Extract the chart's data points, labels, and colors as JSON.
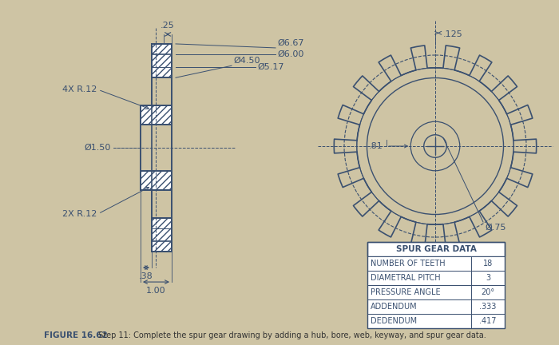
{
  "bg_color": "#cec4a4",
  "drawing_color": "#3a5070",
  "title": "FIGURE 16.62",
  "caption": " Step 11: Complete the spur gear drawing by adding a hub, bore, web, keyway, and spur gear data.",
  "table_title": "SPUR GEAR DATA",
  "table_rows": [
    [
      "NUMBER OF TEETH",
      "18"
    ],
    [
      "DIAMETRAL PITCH",
      "3"
    ],
    [
      "PRESSURE ANGLE",
      "20°"
    ],
    [
      "ADDENDUM",
      ".333"
    ],
    [
      "DEDENDUM",
      ".417"
    ]
  ],
  "dim_d1": "Ø1.50",
  "dim_d2": "Ø4.50",
  "dim_d3": "Ø5.17",
  "dim_d4": "Ø6.00",
  "dim_d5": "Ø6.67",
  "dim_w025": ".25",
  "dim_w038": ".38",
  "dim_w100": "1.00",
  "dim_r4x": "4X R.12",
  "dim_r2x": "2X R.12",
  "dim_bore": "Ø.75",
  "dim_hub": ".81",
  "dim_tooth": ".125",
  "n_teeth": 18,
  "r_addendum": 3.335,
  "r_pitch": 3.0,
  "r_dedendum": 2.583,
  "r_bore": 0.375,
  "r_hub": 0.81,
  "r_web_inner": 2.25,
  "r_web_outer": 2.585
}
